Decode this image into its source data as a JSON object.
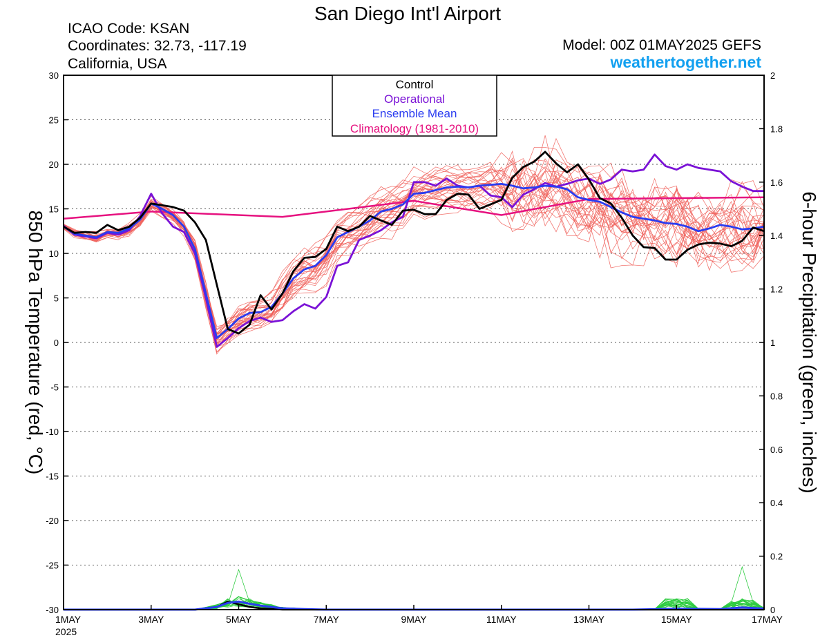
{
  "header": {
    "title": "San Diego Int'l Airport",
    "icao": "ICAO Code: KSAN",
    "coords": "Coordinates: 32.73, -117.19",
    "region": "California, USA",
    "model": "Model: 00Z 01MAY2025 GEFS",
    "site": "weathertogether.net"
  },
  "colors": {
    "control": "#000000",
    "operational": "#7a12d6",
    "mean": "#2a3cf0",
    "climatology": "#e6117f",
    "members": "#f0605a",
    "precip": "#2ecc40",
    "site": "#12a0f0"
  },
  "chart_data": {
    "type": "line",
    "title": "San Diego Int'l Airport",
    "ylabel": "850 hPa Temperature (red, °C)",
    "y2label": "6-hour Precipitation (green, inches)",
    "xlabel": "",
    "x_unit": "days after 1MAY2025 00Z",
    "xlim": [
      0,
      16
    ],
    "ylim": [
      -30,
      30
    ],
    "y2lim": [
      0,
      2
    ],
    "yticks": [
      30,
      25,
      20,
      15,
      10,
      5,
      0,
      -5,
      -10,
      -15,
      -20,
      -25,
      -30
    ],
    "y2ticks": [
      2,
      1.8,
      1.6,
      1.4,
      1.2,
      1,
      0.8,
      0.6,
      0.4,
      0.2,
      0
    ],
    "xticks": [
      {
        "x": 0,
        "label": "1MAY",
        "sub": "2025"
      },
      {
        "x": 2,
        "label": "3MAY"
      },
      {
        "x": 4,
        "label": "5MAY"
      },
      {
        "x": 6,
        "label": "7MAY"
      },
      {
        "x": 8,
        "label": "9MAY"
      },
      {
        "x": 10,
        "label": "11MAY"
      },
      {
        "x": 12,
        "label": "13MAY"
      },
      {
        "x": 14,
        "label": "15MAY"
      },
      {
        "x": 16,
        "label": "17MAY"
      }
    ],
    "grid": "horizontal dashed",
    "legend": {
      "position": "top-center",
      "entries": [
        "Control",
        "Operational",
        "Ensemble Mean",
        "Climatology (1981-2010)"
      ]
    },
    "series": [
      {
        "name": "Climatology (1981-2010)",
        "axis": "left",
        "role": "climatology",
        "x": [
          0,
          2,
          5,
          8,
          10,
          12,
          16
        ],
        "y": [
          13.9,
          14.7,
          14.1,
          15.9,
          14.3,
          16.1,
          16.3
        ]
      },
      {
        "name": "Control",
        "axis": "left",
        "role": "control",
        "x": [
          0,
          0.25,
          0.5,
          0.75,
          1,
          1.25,
          1.5,
          1.75,
          2,
          2.25,
          2.5,
          2.75,
          3,
          3.25,
          3.5,
          3.75,
          4,
          4.25,
          4.5,
          4.75,
          5,
          5.25,
          5.5,
          5.75,
          6,
          6.25,
          6.5,
          6.75,
          7,
          7.25,
          7.5,
          7.75,
          8,
          8.25,
          8.5,
          8.75,
          9,
          9.25,
          9.5,
          9.75,
          10,
          10.25,
          10.5,
          10.75,
          11,
          11.25,
          11.5,
          11.75,
          12,
          12.25,
          12.5,
          12.75,
          13,
          13.25,
          13.5,
          13.75,
          14,
          14.25,
          14.5,
          14.75,
          15,
          15.25,
          15.5,
          15.75,
          16
        ],
        "y": [
          13.0,
          12.3,
          12.4,
          12.3,
          13.2,
          12.6,
          13.0,
          14.0,
          15.6,
          15.4,
          15.2,
          14.8,
          13.5,
          11.5,
          6.5,
          1.5,
          1.0,
          2.0,
          5.3,
          3.7,
          5.5,
          8.0,
          9.5,
          9.6,
          10.5,
          13.0,
          12.5,
          13.0,
          14.2,
          13.7,
          13.2,
          14.8,
          14.9,
          14.4,
          14.4,
          16.0,
          16.7,
          16.6,
          15.0,
          15.5,
          16.0,
          18.5,
          19.7,
          20.3,
          21.4,
          20.1,
          19.1,
          20.0,
          18.3,
          16.2,
          15.6,
          14.0,
          12.0,
          10.7,
          10.6,
          9.3,
          9.3,
          10.4,
          11.0,
          11.2,
          11.1,
          10.8,
          11.4,
          12.9,
          12.5
        ]
      },
      {
        "name": "Operational",
        "axis": "left",
        "role": "operational",
        "x": [
          0,
          0.25,
          0.5,
          0.75,
          1,
          1.25,
          1.5,
          1.75,
          2,
          2.25,
          2.5,
          2.75,
          3,
          3.25,
          3.5,
          3.75,
          4,
          4.25,
          4.5,
          4.75,
          5,
          5.25,
          5.5,
          5.75,
          6,
          6.25,
          6.5,
          6.75,
          7,
          7.25,
          7.5,
          7.75,
          8,
          8.25,
          8.5,
          8.75,
          9,
          9.25,
          9.5,
          9.75,
          10,
          10.25,
          10.5,
          10.75,
          11,
          11.25,
          11.5,
          11.75,
          12,
          12.25,
          12.5,
          12.75,
          13,
          13.25,
          13.5,
          13.75,
          14,
          14.25,
          14.5,
          14.75,
          15,
          15.25,
          15.5,
          15.75,
          16
        ],
        "y": [
          13.1,
          12.1,
          11.9,
          11.7,
          12.3,
          12.1,
          12.6,
          14.2,
          16.7,
          14.5,
          13.0,
          12.4,
          10.0,
          5.0,
          -0.5,
          0.5,
          1.6,
          2.4,
          2.8,
          2.3,
          2.5,
          3.5,
          4.3,
          3.8,
          5.1,
          8.6,
          9.0,
          11.5,
          12.0,
          12.6,
          13.5,
          14.1,
          18.0,
          18.0,
          17.6,
          18.4,
          17.6,
          17.4,
          17.6,
          16.5,
          16.3,
          15.2,
          16.6,
          17.2,
          17.9,
          17.5,
          17.8,
          18.2,
          18.4,
          17.8,
          18.3,
          19.4,
          19.2,
          19.4,
          21.1,
          19.8,
          19.4,
          20.0,
          19.6,
          19.4,
          19.2,
          18.1,
          17.5,
          17.0,
          17.0
        ]
      },
      {
        "name": "Ensemble Mean",
        "axis": "left",
        "role": "mean",
        "x": [
          0,
          0.25,
          0.5,
          0.75,
          1,
          1.25,
          1.5,
          1.75,
          2,
          2.25,
          2.5,
          2.75,
          3,
          3.25,
          3.5,
          3.75,
          4,
          4.25,
          4.5,
          4.75,
          5,
          5.25,
          5.5,
          5.75,
          6,
          6.25,
          6.5,
          6.75,
          7,
          7.25,
          7.5,
          7.75,
          8,
          8.25,
          8.5,
          8.75,
          9,
          9.25,
          9.5,
          9.75,
          10,
          10.25,
          10.5,
          10.75,
          11,
          11.25,
          11.5,
          11.75,
          12,
          12.25,
          12.5,
          12.75,
          13,
          13.25,
          13.5,
          13.75,
          14,
          14.25,
          14.5,
          14.75,
          15,
          15.25,
          15.5,
          15.75,
          16
        ],
        "y": [
          13.0,
          12.2,
          12.0,
          11.8,
          12.4,
          12.3,
          12.8,
          13.8,
          15.6,
          15.0,
          14.3,
          13.0,
          10.5,
          5.5,
          0.5,
          1.5,
          2.7,
          3.3,
          3.4,
          4.0,
          5.5,
          7.2,
          8.2,
          8.6,
          9.8,
          11.8,
          12.4,
          13.0,
          13.7,
          14.7,
          15.0,
          15.5,
          16.7,
          16.8,
          17.1,
          17.4,
          17.5,
          17.4,
          17.6,
          17.7,
          17.8,
          17.6,
          17.3,
          17.4,
          17.6,
          17.5,
          17.2,
          16.3,
          16.0,
          15.8,
          15.2,
          14.6,
          14.1,
          13.9,
          13.7,
          13.4,
          13.3,
          13.0,
          12.5,
          12.8,
          13.2,
          13.0,
          12.7,
          12.8,
          13.0
        ]
      },
      {
        "name": "",
        "axis": "right",
        "role": "precip-control",
        "x": [
          0,
          3,
          3.5,
          3.75,
          4,
          4.25,
          4.5,
          5,
          16
        ],
        "y": [
          0,
          0,
          0.01,
          0.03,
          0.02,
          0.01,
          0.005,
          0,
          0
        ]
      },
      {
        "name": "",
        "axis": "right",
        "role": "precip-mean",
        "x": [
          0,
          3,
          3.25,
          3.5,
          3.75,
          4,
          4.25,
          4.5,
          4.75,
          5,
          5.5,
          6,
          13,
          14,
          15,
          15.5,
          16
        ],
        "y": [
          0,
          0,
          0.005,
          0.01,
          0.025,
          0.03,
          0.022,
          0.015,
          0.01,
          0.005,
          0.002,
          0,
          0,
          0.003,
          0.002,
          0.008,
          0.004
        ]
      }
    ],
    "members_note": "ensemble members drawn as thin red (temperature) and thin green (precipitation) lines"
  }
}
